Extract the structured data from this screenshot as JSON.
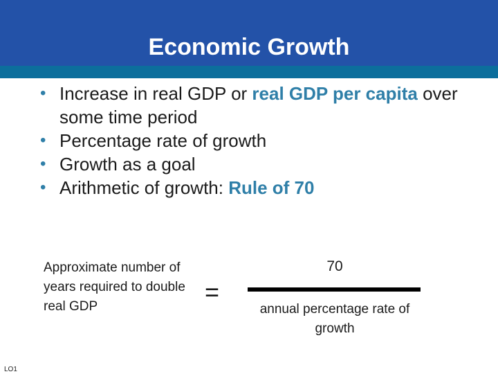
{
  "slide": {
    "title": "Economic Growth"
  },
  "bullets": {
    "b1_part1": "Increase in real GDP or ",
    "b1_highlight": "real GDP per capita",
    "b1_part2": " over some time period",
    "b2": "Percentage rate of growth",
    "b3": "Growth as a goal",
    "b4_part1": "Arithmetic of growth:  ",
    "b4_highlight": "Rule of 70",
    "bullet_symbol": "•"
  },
  "formula": {
    "left": "Approximate number of years required to double real GDP",
    "equals": "=",
    "numerator": "70",
    "denominator": "annual percentage rate of growth"
  },
  "footer": {
    "lo_label": "LO1"
  },
  "colors": {
    "title_bar": "#2352a8",
    "accent_strip": "#0c6e9c",
    "highlight": "#2f7fa8"
  }
}
